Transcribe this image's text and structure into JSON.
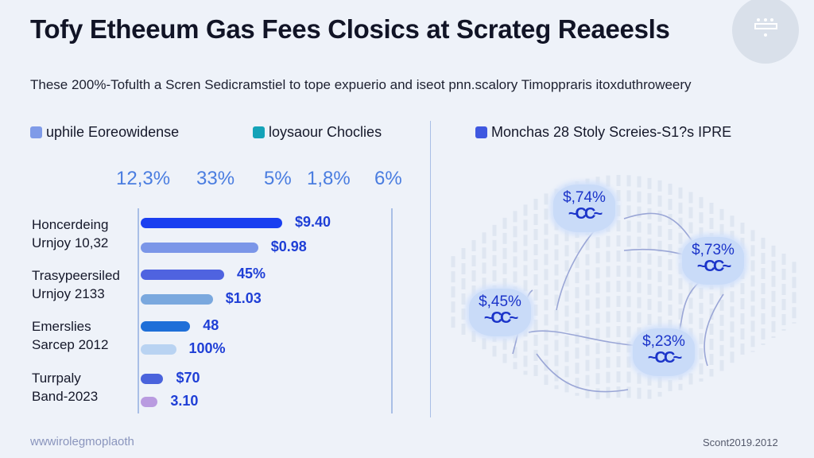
{
  "header": {
    "title": "Tofy Etheeum Gas Fees Closics at Scrateg Reaeesls",
    "subtitle": "These 200%-Tofulth a Scren Sedicramstiel to tope expuerio and iseot pnn.scalory Timoppraris itoxduthroweery",
    "badge_icon": "keyboard-icon"
  },
  "legend": [
    {
      "label": "uphile Eoreowidense",
      "color": "#7f9be8"
    },
    {
      "label": "loysaour Choclies",
      "color": "#14a3b8"
    },
    {
      "label": "Monchas 28 Stoly Screies-S1?s IPRE",
      "color": "#3f58e0"
    }
  ],
  "percent_row": [
    "12,3%",
    "33%",
    "5%",
    "1,8%",
    "6%"
  ],
  "chart_data": {
    "type": "bar",
    "orientation": "horizontal",
    "groups": [
      {
        "label": [
          "Honcerdeing",
          "Urnjoy 10,32"
        ],
        "bars": [
          {
            "level": 1.0,
            "label": "$9.40",
            "color": "#1a3ff0"
          },
          {
            "level": 0.83,
            "label": "$0.98",
            "color": "#7b96e8"
          }
        ]
      },
      {
        "label": [
          "Trasypeersiled",
          "Urnjoy 2133"
        ],
        "bars": [
          {
            "level": 0.59,
            "label": "45%",
            "color": "#4f63e0"
          },
          {
            "level": 0.51,
            "label": "$1.03",
            "color": "#7aa8de"
          }
        ]
      },
      {
        "label": [
          "Emerslies",
          "Sarcep 2012"
        ],
        "bars": [
          {
            "level": 0.35,
            "label": "48",
            "color": "#1f6fd8"
          },
          {
            "level": 0.25,
            "label": "100%",
            "color": "#b9d3f2"
          }
        ]
      },
      {
        "label": [
          "Turrpaly",
          "Band-2023"
        ],
        "bars": [
          {
            "level": 0.16,
            "label": "$70",
            "color": "#4a63dc"
          },
          {
            "level": 0.12,
            "label": "3.10",
            "color": "#b99be0"
          }
        ]
      }
    ]
  },
  "network": {
    "nodes": [
      {
        "label": "$,74%",
        "glyph": "~CC~"
      },
      {
        "label": "$,73%",
        "glyph": "~CC~"
      },
      {
        "label": "$,45%",
        "glyph": "~CC~"
      },
      {
        "label": "$,23%",
        "glyph": "~CC~"
      }
    ]
  },
  "footer": {
    "left": "wwwirolegmoplaoth",
    "right": "Scont2019.2012"
  }
}
